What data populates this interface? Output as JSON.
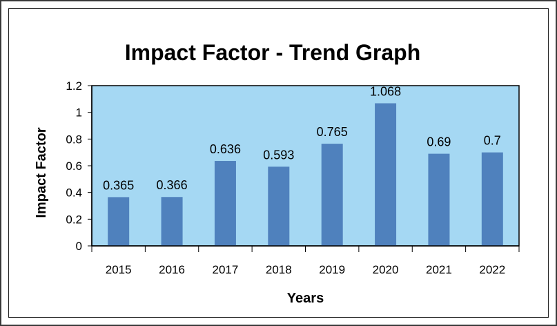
{
  "chart_data": {
    "type": "bar",
    "title": "Impact Factor - Trend Graph",
    "xlabel": "Years",
    "ylabel": "Impact Factor",
    "categories": [
      "2015",
      "2016",
      "2017",
      "2018",
      "2019",
      "2020",
      "2021",
      "2022"
    ],
    "values": [
      0.365,
      0.366,
      0.636,
      0.593,
      0.765,
      1.068,
      0.69,
      0.7
    ],
    "data_labels": [
      "0.365",
      "0.366",
      "0.636",
      "0.593",
      "0.765",
      "1.068",
      "0.69",
      "0.7"
    ],
    "ylim": [
      0,
      1.2
    ],
    "yticks": [
      0,
      0.2,
      0.4,
      0.6,
      0.8,
      1,
      1.2
    ],
    "ytick_labels": [
      "0",
      "0.2",
      "0.4",
      "0.6",
      "0.8",
      "1",
      "1.2"
    ],
    "grid": false,
    "legend": "none",
    "colors": {
      "bar": "#4f81bd",
      "plot_background": "#a5d8f3",
      "axis": "#000000"
    }
  }
}
